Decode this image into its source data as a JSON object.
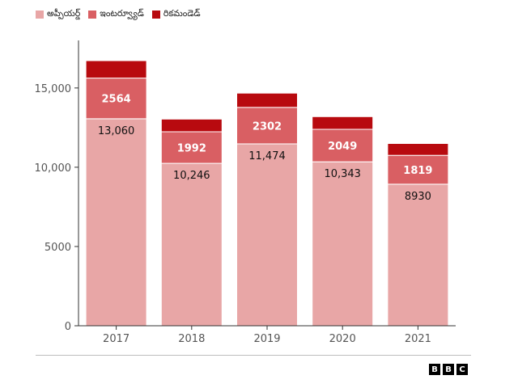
{
  "legend": {
    "items": [
      {
        "label": "అప్పీయర్డ్",
        "color": "#e8a6a6"
      },
      {
        "label": "ఇంటర్వ్యూడ్",
        "color": "#d95f63"
      },
      {
        "label": "రికమండెడ్",
        "color": "#b80a0f"
      }
    ]
  },
  "chart_data": {
    "type": "bar",
    "stacked": true,
    "categories": [
      "2017",
      "2018",
      "2019",
      "2020",
      "2021"
    ],
    "series": [
      {
        "name": "అప్పీయర్డ్",
        "color": "#e8a6a6",
        "values": [
          13060,
          10246,
          11474,
          10343,
          8930
        ],
        "labels": [
          "13,060",
          "10,246",
          "11,474",
          "10,343",
          "8930"
        ],
        "label_color": "#111111"
      },
      {
        "name": "ఇంటర్వ్యూడ్",
        "color": "#d95f63",
        "values": [
          2564,
          1992,
          2302,
          2049,
          1819
        ],
        "labels": [
          "2564",
          "1992",
          "2302",
          "2049",
          "1819"
        ],
        "label_color": "#ffffff"
      },
      {
        "name": "రికమండెడ్",
        "color": "#b80a0f",
        "values": [
          1100,
          800,
          900,
          800,
          750
        ],
        "labels": [
          "",
          "",
          "",
          "",
          ""
        ],
        "label_color": "#ffffff"
      }
    ],
    "y_ticks": [
      0,
      5000,
      10000,
      15000
    ],
    "y_tick_labels": [
      "0",
      "5000",
      "10,000",
      "15,000"
    ],
    "ylim": [
      0,
      18000
    ],
    "grid": false,
    "legend_position": "top-left"
  },
  "footer": {
    "logo_letters": [
      "B",
      "B",
      "C"
    ]
  }
}
